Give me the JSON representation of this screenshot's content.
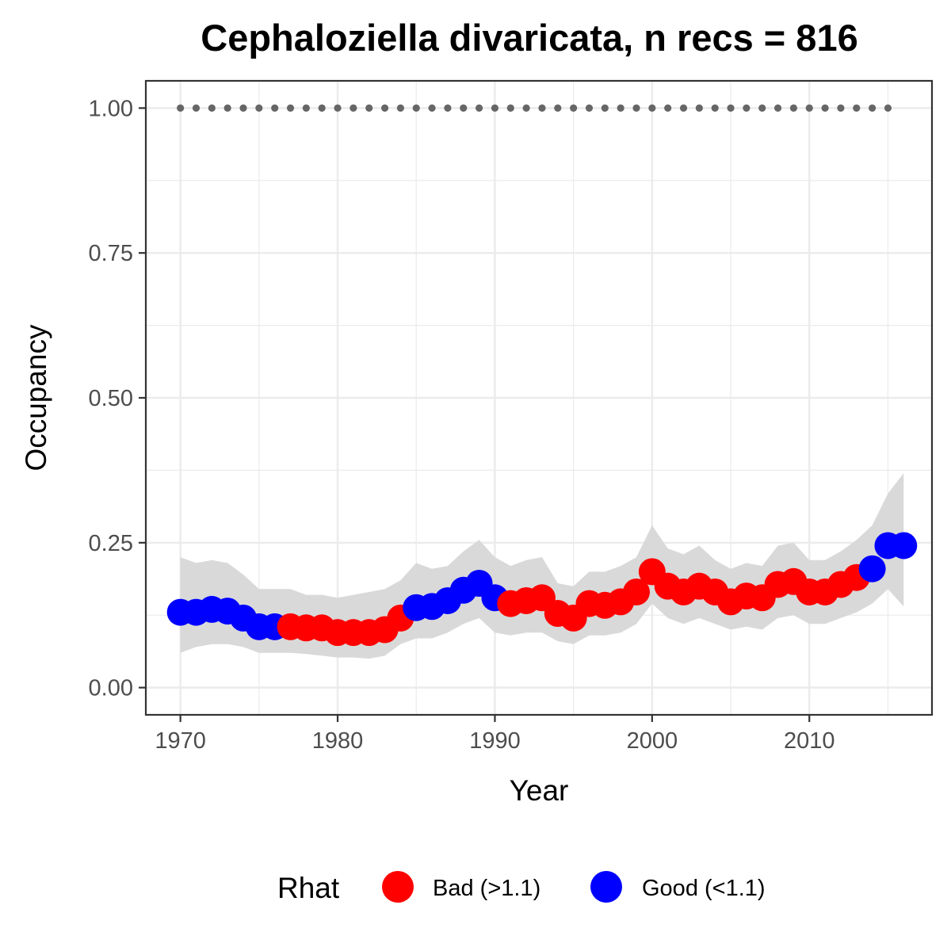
{
  "chart_data": {
    "type": "line",
    "title": "Cephaloziella divaricata, n recs = 816",
    "xlabel": "Year",
    "ylabel": "Occupancy",
    "xlim": [
      1967.8,
      2017.8
    ],
    "ylim": [
      -0.047,
      1.047
    ],
    "x_ticks": [
      1970,
      1980,
      1990,
      2000,
      2010
    ],
    "x_tick_labels": [
      "1970",
      "1980",
      "1990",
      "2000",
      "2010"
    ],
    "y_ticks": [
      0,
      0.25,
      0.5,
      0.75,
      1.0
    ],
    "y_tick_labels": [
      "0.00",
      "0.25",
      "0.50",
      "0.75",
      "1.00"
    ],
    "grid": true,
    "legend": {
      "title": "Rhat",
      "placement": "bottom",
      "entries": [
        {
          "label": "Bad (>1.1)",
          "color": "#ff0000"
        },
        {
          "label": "Good (<1.1)",
          "color": "#0000ff"
        }
      ]
    },
    "colors": {
      "bad": "#ff0000",
      "good": "#0000ff",
      "ribbon": "#d9d9d9",
      "reference": "#666666"
    },
    "reference_line": {
      "x": [
        1970,
        1971,
        1972,
        1973,
        1974,
        1975,
        1976,
        1977,
        1978,
        1979,
        1980,
        1981,
        1982,
        1983,
        1984,
        1985,
        1986,
        1987,
        1988,
        1989,
        1990,
        1991,
        1992,
        1993,
        1994,
        1995,
        1996,
        1997,
        1998,
        1999,
        2000,
        2001,
        2002,
        2003,
        2004,
        2005,
        2006,
        2007,
        2008,
        2009,
        2010,
        2011,
        2012,
        2013,
        2014,
        2015
      ],
      "y": 1.0
    },
    "series": [
      {
        "x": [
          1970,
          1971,
          1972,
          1973,
          1974,
          1975,
          1976,
          1977,
          1978,
          1979,
          1980,
          1981,
          1982,
          1983,
          1984,
          1985,
          1986,
          1987,
          1988,
          1989,
          1990,
          1991,
          1992,
          1993,
          1994,
          1995,
          1996,
          1997,
          1998,
          1999,
          2000,
          2001,
          2002,
          2003,
          2004,
          2005,
          2006,
          2007,
          2008,
          2009,
          2010,
          2011,
          2012,
          2013,
          2014,
          2015,
          2016
        ],
        "y": [
          0.13,
          0.13,
          0.135,
          0.132,
          0.12,
          0.105,
          0.105,
          0.105,
          0.103,
          0.103,
          0.095,
          0.095,
          0.095,
          0.1,
          0.12,
          0.138,
          0.14,
          0.15,
          0.168,
          0.18,
          0.155,
          0.145,
          0.15,
          0.155,
          0.128,
          0.12,
          0.145,
          0.142,
          0.148,
          0.165,
          0.2,
          0.175,
          0.165,
          0.175,
          0.165,
          0.148,
          0.158,
          0.155,
          0.178,
          0.183,
          0.165,
          0.165,
          0.178,
          0.19,
          0.205,
          0.245,
          0.245
        ],
        "lower": [
          0.06,
          0.07,
          0.075,
          0.075,
          0.07,
          0.06,
          0.06,
          0.06,
          0.058,
          0.055,
          0.052,
          0.052,
          0.05,
          0.055,
          0.075,
          0.085,
          0.085,
          0.095,
          0.11,
          0.12,
          0.095,
          0.09,
          0.095,
          0.095,
          0.08,
          0.075,
          0.09,
          0.09,
          0.095,
          0.11,
          0.145,
          0.12,
          0.11,
          0.12,
          0.11,
          0.1,
          0.105,
          0.1,
          0.12,
          0.125,
          0.11,
          0.11,
          0.12,
          0.13,
          0.145,
          0.17,
          0.14
        ],
        "upper": [
          0.225,
          0.215,
          0.22,
          0.215,
          0.195,
          0.17,
          0.17,
          0.17,
          0.16,
          0.16,
          0.155,
          0.16,
          0.165,
          0.17,
          0.185,
          0.215,
          0.205,
          0.21,
          0.235,
          0.255,
          0.225,
          0.21,
          0.22,
          0.225,
          0.18,
          0.175,
          0.2,
          0.2,
          0.21,
          0.225,
          0.28,
          0.24,
          0.23,
          0.245,
          0.22,
          0.205,
          0.215,
          0.21,
          0.245,
          0.25,
          0.22,
          0.22,
          0.235,
          0.255,
          0.28,
          0.335,
          0.37
        ],
        "rhat": [
          "good",
          "good",
          "good",
          "good",
          "good",
          "good",
          "good",
          "bad",
          "bad",
          "bad",
          "bad",
          "bad",
          "bad",
          "bad",
          "bad",
          "good",
          "good",
          "good",
          "good",
          "good",
          "good",
          "bad",
          "bad",
          "bad",
          "bad",
          "bad",
          "bad",
          "bad",
          "bad",
          "bad",
          "bad",
          "bad",
          "bad",
          "bad",
          "bad",
          "bad",
          "bad",
          "bad",
          "bad",
          "bad",
          "bad",
          "bad",
          "bad",
          "bad",
          "good",
          "good",
          "good"
        ]
      }
    ]
  }
}
